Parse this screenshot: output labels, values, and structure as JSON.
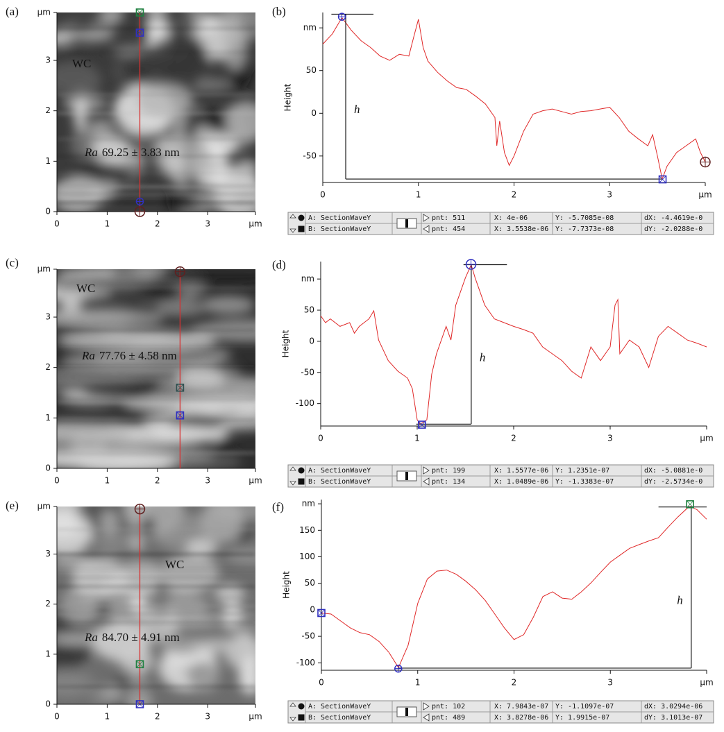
{
  "chart_data": [
    {
      "type": "image",
      "panel_label": "(a)",
      "xlim": [
        0,
        3.95
      ],
      "ylim": [
        0,
        3.95
      ],
      "xticks": [
        0,
        1,
        2,
        3,
        {
          "value": 3.95,
          "label": "µm"
        }
      ],
      "yticks": [
        0,
        1,
        2,
        3,
        {
          "value": 3.95,
          "label": "µm"
        }
      ],
      "phase_label": "WC",
      "ra_symbol": "Ra",
      "ra_value": "69.25 ± 3.83 nm",
      "section_x": 1.65,
      "section_color": "#d83030",
      "markers": [
        {
          "y": 3.95,
          "shape": "square",
          "color": "#208040"
        },
        {
          "y": 3.55,
          "shape": "square",
          "color": "#3030c0"
        },
        {
          "y": 0.2,
          "shape": "circle",
          "color": "#3030c0"
        },
        {
          "y": 0,
          "shape": "circle-plus",
          "color": "#602020"
        }
      ]
    },
    {
      "type": "line",
      "panel_label": "(b)",
      "y_label": "Height",
      "color": "#e02828",
      "xlim": [
        0,
        4
      ],
      "ylim": [
        -81,
        118
      ],
      "xticks": [
        0,
        1,
        2,
        3,
        {
          "value": 4,
          "label": "µm"
        }
      ],
      "yticks": [
        {
          "value": 100,
          "label": "nm"
        },
        50,
        0,
        -50
      ],
      "x": [
        0,
        0.1,
        0.2,
        0.3,
        0.4,
        0.5,
        0.6,
        0.7,
        0.8,
        0.9,
        0.95,
        1.0,
        1.05,
        1.1,
        1.2,
        1.3,
        1.4,
        1.5,
        1.6,
        1.7,
        1.8,
        1.82,
        1.85,
        1.9,
        1.95,
        2.0,
        2.1,
        2.2,
        2.3,
        2.4,
        2.5,
        2.6,
        2.7,
        2.8,
        2.9,
        3.0,
        3.1,
        3.2,
        3.3,
        3.4,
        3.45,
        3.5,
        3.55,
        3.6,
        3.7,
        3.8,
        3.9,
        3.95,
        4.0
      ],
      "values": [
        81,
        93,
        112,
        97,
        85,
        77,
        67,
        62,
        69,
        67,
        89,
        110,
        77,
        61,
        48,
        38,
        30,
        28,
        20,
        11,
        -5,
        -38,
        -9,
        -46,
        -61,
        -50,
        -21,
        -1,
        3,
        5,
        2,
        -1,
        2,
        3,
        5,
        7,
        -5,
        -21,
        -30,
        -38,
        -25,
        -50,
        -77,
        -62,
        -46,
        -38,
        -30,
        -46,
        -57
      ],
      "markers": [
        {
          "x": 0.2,
          "y": 113,
          "shape": "circle",
          "color": "#3030c0"
        },
        {
          "x": 3.5538,
          "y": -77.373,
          "shape": "square",
          "color": "#3030c0"
        },
        {
          "x": 4,
          "y": -57.085,
          "shape": "circle-plus",
          "color": "#602020"
        }
      ],
      "h": {
        "label": "h",
        "x": 0.24,
        "top": 116,
        "bottom": -77,
        "top_span": [
          0.09,
          0.53
        ],
        "bottom_span": [
          0.24,
          3.55
        ]
      },
      "cursor_table": {
        "rows": [
          {
            "name": "A: SectionWaveY",
            "pnt": "pnt: 511",
            "x": "X: 4e-06",
            "y": "Y: -5.7085e-08",
            "d": "dX: -4.4619e-0"
          },
          {
            "name": "B: SectionWaveY",
            "pnt": "pnt: 454",
            "x": "X: 3.5538e-06",
            "y": "Y: -7.7373e-08",
            "d": "dY: -2.0288e-0"
          }
        ]
      }
    },
    {
      "type": "image",
      "panel_label": "(c)",
      "xlim": [
        0,
        3.95
      ],
      "ylim": [
        0,
        3.95
      ],
      "xticks": [
        0,
        1,
        2,
        3,
        {
          "value": 3.95,
          "label": "µm"
        }
      ],
      "yticks": [
        0,
        1,
        2,
        3,
        {
          "value": 3.95,
          "label": "µm"
        }
      ],
      "phase_label": "WC",
      "ra_symbol": "Ra",
      "ra_value": "77.76 ± 4.58 nm",
      "section_x": 2.45,
      "section_color": "#d83030",
      "markers": [
        {
          "y": 3.9,
          "shape": "circle-plus",
          "color": "#602020"
        },
        {
          "y": 1.6,
          "shape": "square",
          "color": "#305050"
        },
        {
          "y": 1.05,
          "shape": "square",
          "color": "#3030c0"
        }
      ]
    },
    {
      "type": "line",
      "panel_label": "(d)",
      "y_label": "Height",
      "color": "#e02828",
      "xlim": [
        0,
        4
      ],
      "ylim": [
        -136,
        128
      ],
      "xticks": [
        0,
        1,
        2,
        3,
        {
          "value": 4,
          "label": "µm"
        }
      ],
      "yticks": [
        {
          "value": 100,
          "label": "nm"
        },
        50,
        0,
        -50,
        -100
      ],
      "x": [
        0,
        0.05,
        0.1,
        0.2,
        0.3,
        0.35,
        0.4,
        0.5,
        0.55,
        0.6,
        0.7,
        0.8,
        0.9,
        0.95,
        1.0,
        1.03,
        1.1,
        1.15,
        1.2,
        1.3,
        1.35,
        1.4,
        1.5,
        1.56,
        1.6,
        1.7,
        1.8,
        1.9,
        2.0,
        2.1,
        2.2,
        2.3,
        2.4,
        2.5,
        2.6,
        2.7,
        2.8,
        2.9,
        3.0,
        3.05,
        3.08,
        3.1,
        3.2,
        3.3,
        3.4,
        3.5,
        3.6,
        3.7,
        3.8,
        3.9,
        4.0
      ],
      "values": [
        41,
        30,
        36,
        24,
        30,
        13,
        24,
        36,
        49,
        2,
        -31,
        -48,
        -59,
        -76,
        -126,
        -133,
        -126,
        -53,
        -20,
        24,
        2,
        58,
        102,
        123,
        102,
        58,
        36,
        30,
        24,
        19,
        13,
        -9,
        -20,
        -31,
        -48,
        -59,
        -9,
        -31,
        -9,
        58,
        67,
        -20,
        2,
        -9,
        -42,
        8,
        24,
        13,
        2,
        -3,
        -9
      ],
      "markers": [
        {
          "x": 1.5577,
          "y": 123.51,
          "shape": "circle-plus",
          "color": "#3030c0"
        },
        {
          "x": 1.0489,
          "y": -133.83,
          "shape": "square",
          "color": "#3030c0"
        }
      ],
      "h": {
        "label": "h",
        "x": 1.56,
        "top": 123,
        "bottom": -133,
        "top_span": [
          1.48,
          1.93
        ],
        "bottom_span": [
          0.99,
          1.56
        ]
      },
      "cursor_table": {
        "rows": [
          {
            "name": "A: SectionWaveY",
            "pnt": "pnt: 199",
            "x": "X: 1.5577e-06",
            "y": "Y: 1.2351e-07",
            "d": "dX: -5.0881e-0"
          },
          {
            "name": "B: SectionWaveY",
            "pnt": "pnt: 134",
            "x": "X: 1.0489e-06",
            "y": "Y: -1.3383e-07",
            "d": "dY: -2.5734e-0"
          }
        ]
      }
    },
    {
      "type": "image",
      "panel_label": "(e)",
      "xlim": [
        0,
        3.95
      ],
      "ylim": [
        0,
        3.95
      ],
      "xticks": [
        0,
        1,
        2,
        3,
        {
          "value": 3.95,
          "label": "µm"
        }
      ],
      "yticks": [
        0,
        1,
        2,
        3,
        {
          "value": 3.95,
          "label": "µm"
        }
      ],
      "phase_label": "WC",
      "ra_symbol": "Ra",
      "ra_value": "84.70 ± 4.91 nm",
      "section_x": 1.65,
      "section_color": "#d83030",
      "markers": [
        {
          "y": 3.9,
          "shape": "circle-plus",
          "color": "#602020"
        },
        {
          "y": 0.8,
          "shape": "square",
          "color": "#208040"
        },
        {
          "y": 0,
          "shape": "square",
          "color": "#3030c0"
        }
      ]
    },
    {
      "type": "line",
      "panel_label": "(f)",
      "y_label": "Height",
      "color": "#e02828",
      "xlim": [
        0,
        4
      ],
      "ylim": [
        -114,
        208
      ],
      "xticks": [
        0,
        1,
        2,
        3,
        {
          "value": 4,
          "label": "µm"
        }
      ],
      "yticks": [
        {
          "value": 200,
          "label": "nm"
        },
        150,
        100,
        50,
        0,
        -50,
        -100
      ],
      "x": [
        0,
        0.1,
        0.2,
        0.3,
        0.4,
        0.5,
        0.6,
        0.7,
        0.8,
        0.9,
        1.0,
        1.1,
        1.2,
        1.3,
        1.4,
        1.5,
        1.6,
        1.7,
        1.8,
        1.9,
        2.0,
        2.1,
        2.2,
        2.3,
        2.4,
        2.5,
        2.6,
        2.7,
        2.8,
        2.9,
        3.0,
        3.1,
        3.2,
        3.3,
        3.4,
        3.5,
        3.6,
        3.7,
        3.8,
        3.83,
        3.9,
        4.0
      ],
      "values": [
        -6,
        -8,
        -21,
        -34,
        -43,
        -47,
        -60,
        -80,
        -109,
        -67,
        12,
        58,
        73,
        75,
        67,
        54,
        38,
        18,
        -8,
        -34,
        -56,
        -47,
        -14,
        25,
        34,
        22,
        20,
        34,
        51,
        71,
        90,
        103,
        116,
        123,
        130,
        136,
        156,
        175,
        192,
        195,
        189,
        171
      ],
      "markers": [
        {
          "x": 0,
          "y": -6,
          "shape": "square",
          "color": "#3030c0"
        },
        {
          "x": 0.79843,
          "y": -110.97,
          "shape": "circle",
          "color": "#3030c0"
        },
        {
          "x": 3.8278,
          "y": 199.15,
          "shape": "square",
          "color": "#208040"
        }
      ],
      "h": {
        "label": "h",
        "x": 3.84,
        "top": 194,
        "bottom": -110,
        "top_span": [
          3.5,
          4.0
        ],
        "bottom_span": [
          0.8,
          3.84
        ]
      },
      "cursor_table": {
        "rows": [
          {
            "name": "A: SectionWaveY",
            "pnt": "pnt: 102",
            "x": "X: 7.9843e-07",
            "y": "Y: -1.1097e-07",
            "d": "dX: 3.0294e-06"
          },
          {
            "name": "B: SectionWaveY",
            "pnt": "pnt: 489",
            "x": "X: 3.8278e-06",
            "y": "Y: 1.9915e-07",
            "d": "dY: 3.1013e-07"
          }
        ]
      }
    }
  ]
}
